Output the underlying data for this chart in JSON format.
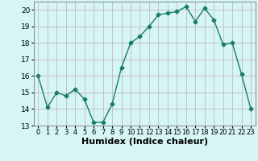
{
  "x": [
    0,
    1,
    2,
    3,
    4,
    5,
    6,
    7,
    8,
    9,
    10,
    11,
    12,
    13,
    14,
    15,
    16,
    17,
    18,
    19,
    20,
    21,
    22,
    23
  ],
  "y": [
    16,
    14.1,
    15,
    14.8,
    15.2,
    14.6,
    13.2,
    13.2,
    14.3,
    16.5,
    18.0,
    18.4,
    19.0,
    19.7,
    19.8,
    19.9,
    20.2,
    19.3,
    20.1,
    19.4,
    17.9,
    18.0,
    16.1,
    14.0
  ],
  "line_color": "#1a7a6e",
  "marker": "D",
  "marker_size": 2.5,
  "linewidth": 1.0,
  "bg_color": "#d6f5f5",
  "grid_color": "#c0b0b0",
  "xlabel": "Humidex (Indice chaleur)",
  "xlabel_fontsize": 8,
  "ylabel_fontsize": 6.5,
  "tick_fontsize": 6,
  "xlim": [
    -0.5,
    23.5
  ],
  "ylim": [
    13,
    20.5
  ],
  "yticks": [
    13,
    14,
    15,
    16,
    17,
    18,
    19,
    20
  ],
  "xticks": [
    0,
    1,
    2,
    3,
    4,
    5,
    6,
    7,
    8,
    9,
    10,
    11,
    12,
    13,
    14,
    15,
    16,
    17,
    18,
    19,
    20,
    21,
    22,
    23
  ]
}
